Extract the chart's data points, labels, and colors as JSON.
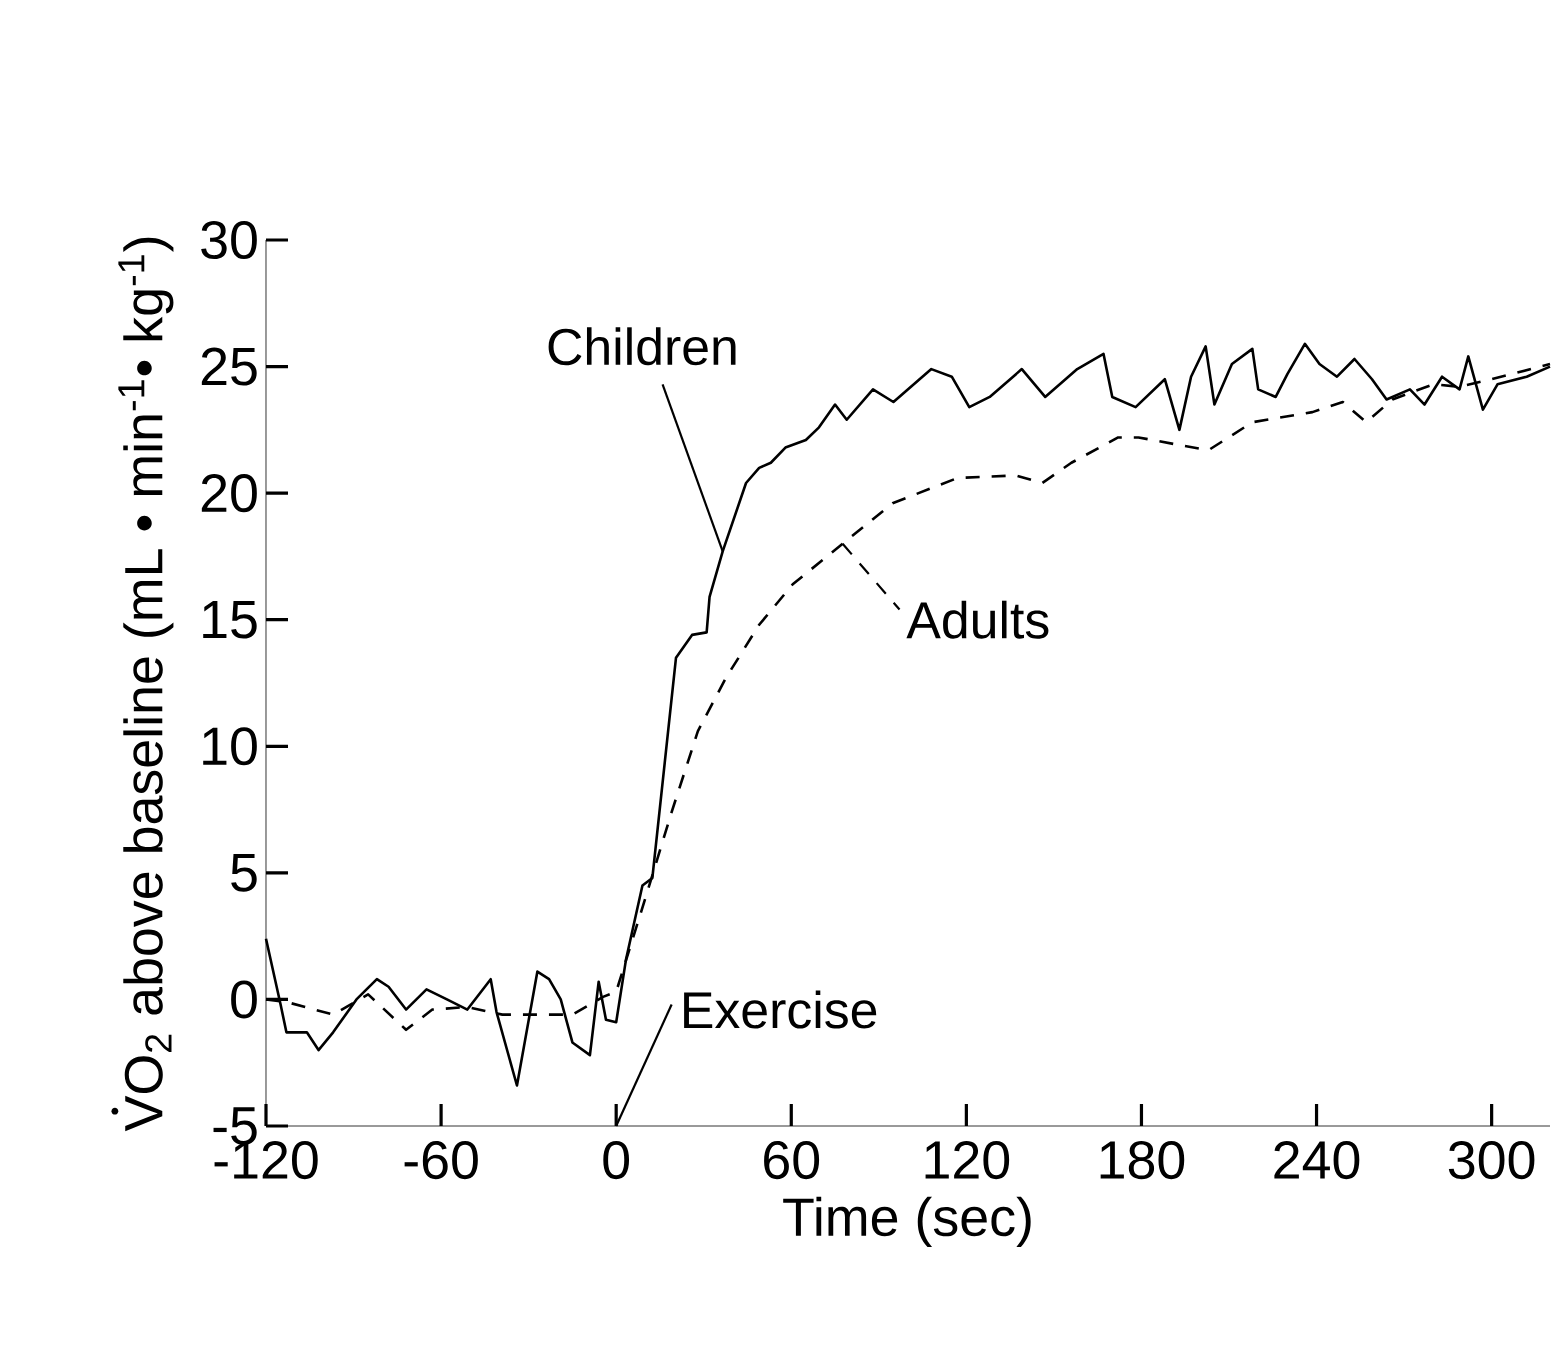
{
  "chart_data": {
    "type": "line",
    "xlabel": "Time (sec)",
    "ylabel": "VO$_{2}$ above baseline (mL • min$^{-1}$• kg$^{-1}$)",
    "xlim": [
      -120,
      320
    ],
    "ylim": [
      -5,
      30
    ],
    "xticks": [
      -120,
      -60,
      0,
      60,
      120,
      180,
      240,
      300
    ],
    "yticks": [
      -5,
      0,
      5,
      10,
      15,
      20,
      25,
      30
    ],
    "grid": false,
    "marker": "none",
    "series": [
      {
        "name": "Children",
        "color": "#000000",
        "line_style": "solid",
        "x": [
          -120,
          -115,
          -113,
          -106,
          -102,
          -97,
          -89,
          -82,
          -78,
          -72,
          -65,
          -58,
          -51,
          -43,
          -41,
          -34,
          -27,
          -23,
          -19,
          -15,
          -9,
          -6,
          -3.5,
          0,
          3.4,
          9,
          12.4,
          20.5,
          26,
          31,
          32,
          36.5,
          44.5,
          49,
          53,
          58,
          65,
          69.5,
          75,
          79,
          88,
          95,
          108,
          115,
          121,
          128,
          139,
          147,
          158,
          167,
          170,
          178,
          188,
          193,
          197,
          202,
          205,
          211,
          218,
          220,
          226,
          230,
          236,
          241,
          247,
          253,
          259,
          264,
          272,
          277,
          283,
          289,
          292,
          297,
          302,
          312,
          320
        ],
        "values": [
          2.4,
          -0.2,
          -1.3,
          -1.3,
          -2.0,
          -1.3,
          0,
          0.8,
          0.5,
          -0.4,
          0.4,
          0,
          -0.4,
          0.8,
          -0.5,
          -3.4,
          1.1,
          0.8,
          0,
          -1.7,
          -2.2,
          0.7,
          -0.8,
          -0.9,
          1.6,
          4.5,
          4.8,
          13.5,
          14.4,
          14.5,
          15.9,
          17.7,
          20.4,
          21.0,
          21.2,
          21.8,
          22.1,
          22.6,
          23.5,
          22.9,
          24.1,
          23.6,
          24.9,
          24.6,
          23.4,
          23.8,
          24.9,
          23.8,
          24.9,
          25.5,
          23.8,
          23.4,
          24.5,
          22.5,
          24.6,
          25.8,
          23.5,
          25.1,
          25.7,
          24.1,
          23.8,
          24.7,
          25.9,
          25.1,
          24.6,
          25.3,
          24.5,
          23.7,
          24.1,
          23.5,
          24.6,
          24.1,
          25.4,
          23.3,
          24.3,
          24.6,
          25.0
        ]
      },
      {
        "name": "Adults",
        "color": "#000000",
        "line_style": "dashed",
        "x": [
          -120,
          -113,
          -97,
          -85,
          -72,
          -63,
          -51,
          -39,
          -15,
          -4.5,
          0,
          10,
          19,
          28,
          37.6,
          49,
          60.5,
          77.6,
          94.7,
          117,
          137,
          146,
          156,
          172,
          179,
          193,
          203,
          218,
          238.6,
          249,
          257,
          266,
          280,
          289,
          300,
          320
        ],
        "values": [
          0,
          -0.1,
          -0.6,
          0.2,
          -1.2,
          -0.4,
          -0.3,
          -0.6,
          -0.6,
          0.1,
          0.3,
          4.0,
          7.4,
          10.6,
          12.7,
          14.8,
          16.4,
          18.0,
          19.6,
          20.6,
          20.7,
          20.4,
          21.2,
          22.2,
          22.2,
          21.9,
          21.7,
          22.8,
          23.2,
          23.6,
          22.8,
          23.7,
          24.3,
          24.2,
          24.5,
          25.1
        ]
      }
    ],
    "annotations": [
      "Exercise"
    ]
  }
}
